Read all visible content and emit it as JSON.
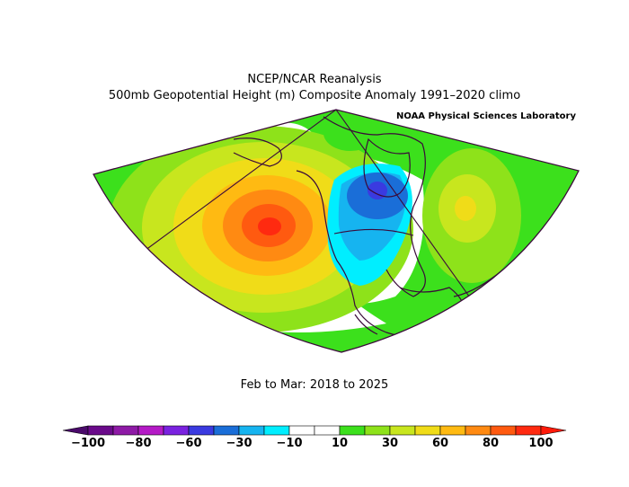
{
  "header": {
    "title_line1": "NCEP/NCAR Reanalysis",
    "title_line2": "500mb Geopotential Height (m) Composite Anomaly 1991–2020 climo",
    "source": "NOAA Physical Sciences Laboratory"
  },
  "period": "Feb to Mar: 2018 to 2025",
  "colorbar": {
    "colors": [
      "#6a0a8a",
      "#8e1aa6",
      "#b41ac6",
      "#7a22e0",
      "#3a3ae0",
      "#1a6ed8",
      "#16b4f0",
      "#00eeff",
      "#ffffff",
      "#ffffff",
      "#3ce01c",
      "#8ee21a",
      "#c8e61e",
      "#f0dc18",
      "#ffba12",
      "#ff8a12",
      "#ff5a10",
      "#ff2a10"
    ],
    "min_color": "#4a0a6a",
    "max_color": "#ff1a0a",
    "tick_labels": [
      "−100",
      "−80",
      "−60",
      "−30",
      "−10",
      "10",
      "30",
      "60",
      "80",
      "100"
    ]
  }
}
